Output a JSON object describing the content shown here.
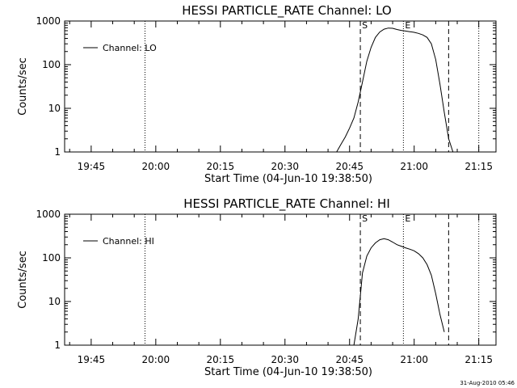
{
  "chart_data": [
    {
      "type": "line",
      "title": "HESSI PARTICLE_RATE Channel: LO",
      "xlabel": "Start Time (04-Jun-10 19:38:50)",
      "ylabel": "Counts/sec",
      "y_scale": "log",
      "ylim": [
        1,
        1000
      ],
      "xlim": [
        "19:38:50",
        "21:19:00"
      ],
      "x_tick_labels": [
        "19:45",
        "20:00",
        "20:15",
        "20:30",
        "20:45",
        "21:00",
        "21:15"
      ],
      "y_tick_labels": [
        "1",
        "10",
        "100",
        "1000"
      ],
      "legend": {
        "position": "top-left",
        "entries": [
          "Channel: LO"
        ]
      },
      "series": [
        {
          "name": "Channel: LO",
          "x": [
            "20:42",
            "20:43",
            "20:44",
            "20:45",
            "20:46",
            "20:47",
            "20:48",
            "20:49",
            "20:50",
            "20:51",
            "20:52",
            "20:53",
            "20:54",
            "20:55",
            "20:56",
            "20:57",
            "20:58",
            "20:59",
            "21:00",
            "21:01",
            "21:02",
            "21:03",
            "21:04",
            "21:05",
            "21:06",
            "21:07",
            "21:08",
            "21:09"
          ],
          "values": [
            1,
            1.5,
            2.2,
            3.5,
            6,
            14,
            40,
            120,
            250,
            420,
            560,
            650,
            690,
            680,
            640,
            610,
            590,
            570,
            550,
            520,
            480,
            420,
            300,
            130,
            35,
            8,
            2,
            1
          ]
        }
      ],
      "vertical_lines": [
        {
          "time": "19:57:30",
          "style": "dotted"
        },
        {
          "time": "20:47:30",
          "style": "dashed",
          "label": "S"
        },
        {
          "time": "20:57:30",
          "style": "dotted",
          "label": "E"
        },
        {
          "time": "21:08:00",
          "style": "dashed"
        },
        {
          "time": "21:15:00",
          "style": "dotted"
        }
      ]
    },
    {
      "type": "line",
      "title": "HESSI PARTICLE_RATE Channel: HI",
      "xlabel": "Start Time (04-Jun-10 19:38:50)",
      "ylabel": "Counts/sec",
      "y_scale": "log",
      "ylim": [
        1,
        1000
      ],
      "xlim": [
        "19:38:50",
        "21:19:00"
      ],
      "x_tick_labels": [
        "19:45",
        "20:00",
        "20:15",
        "20:30",
        "20:45",
        "21:00",
        "21:15"
      ],
      "y_tick_labels": [
        "1",
        "10",
        "100",
        "1000"
      ],
      "legend": {
        "position": "top-left",
        "entries": [
          "Channel: HI"
        ]
      },
      "series": [
        {
          "name": "Channel: HI",
          "x": [
            "20:46",
            "20:47",
            "20:48",
            "20:49",
            "20:50",
            "20:51",
            "20:52",
            "20:53",
            "20:54",
            "20:55",
            "20:56",
            "20:57",
            "20:58",
            "20:59",
            "21:00",
            "21:01",
            "21:02",
            "21:03",
            "21:04",
            "21:05",
            "21:06",
            "21:07"
          ],
          "values": [
            1,
            4,
            45,
            110,
            170,
            220,
            260,
            275,
            260,
            230,
            200,
            185,
            170,
            158,
            145,
            125,
            100,
            70,
            40,
            15,
            5,
            2
          ]
        }
      ],
      "vertical_lines": [
        {
          "time": "19:57:30",
          "style": "dotted"
        },
        {
          "time": "20:47:30",
          "style": "dashed",
          "label": "S"
        },
        {
          "time": "20:57:30",
          "style": "dotted",
          "label": "E"
        },
        {
          "time": "21:08:00",
          "style": "dashed"
        },
        {
          "time": "21:15:00",
          "style": "dotted"
        }
      ]
    }
  ],
  "footer": {
    "timestamp": "31-Aug-2010 05:46"
  }
}
